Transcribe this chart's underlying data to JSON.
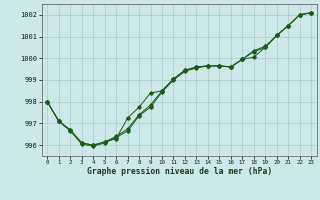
{
  "title": "",
  "xlabel": "Graphe pression niveau de la mer (hPa)",
  "background_color": "#cce8e8",
  "grid_color": "#aacccc",
  "line_color": "#1a5c1a",
  "ylim": [
    995.5,
    1002.5
  ],
  "xlim": [
    -0.5,
    23.5
  ],
  "yticks": [
    996,
    997,
    998,
    999,
    1000,
    1001,
    1002
  ],
  "xticks": [
    0,
    1,
    2,
    3,
    4,
    5,
    6,
    7,
    8,
    9,
    10,
    11,
    12,
    13,
    14,
    15,
    16,
    17,
    18,
    19,
    20,
    21,
    22,
    23
  ],
  "line_a": [
    998.0,
    997.1,
    996.7,
    996.1,
    996.0,
    996.15,
    996.3,
    997.25,
    997.75,
    998.4,
    998.5,
    999.05,
    999.45,
    999.6,
    999.65,
    999.65,
    999.6,
    999.95,
    1000.35,
    1000.55,
    1001.05,
    1001.5,
    1002.0,
    1002.1
  ],
  "line_b": [
    998.0,
    997.1,
    996.7,
    996.1,
    996.0,
    996.15,
    996.4,
    996.75,
    997.4,
    997.85,
    998.5,
    999.05,
    999.45,
    999.6,
    999.65,
    999.65,
    999.6,
    999.95,
    1000.05,
    1000.5,
    1001.05,
    1001.5,
    1002.0,
    1002.1
  ],
  "line_c": [
    998.0,
    997.1,
    996.65,
    996.05,
    995.95,
    996.1,
    996.35,
    996.65,
    997.35,
    997.75,
    998.45,
    999.0,
    999.4,
    999.55,
    999.65,
    999.65,
    999.6,
    999.95,
    1000.3,
    1000.5,
    1001.05,
    1001.5,
    1002.0,
    1002.1
  ]
}
